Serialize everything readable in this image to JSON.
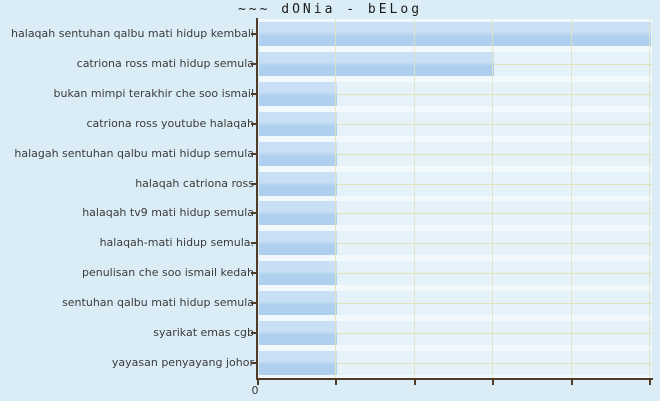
{
  "title": "~~~ dONia - bELog",
  "chart_data": {
    "type": "bar",
    "orientation": "horizontal",
    "title": "~~~ dONia - bELog",
    "xlabel": "",
    "ylabel": "",
    "categories": [
      "halaqah sentuhan qalbu mati hidup kembali",
      "catriona ross mati hidup semula",
      "bukan mimpi terakhir che soo ismail",
      "catriona ross youtube halaqah",
      "halagah sentuhan qalbu mati hidup semula",
      "halaqah catriona ross",
      "halaqah tv9 mati hidup semula",
      "halaqah-mati hidup semula.",
      "penulisan che soo ismail kedah",
      "sentuhan qalbu mati hidup semula",
      "syarikat emas cgb",
      "yayasan penyayang johor"
    ],
    "values": [
      5,
      3,
      1,
      1,
      1,
      1,
      1,
      1,
      1,
      1,
      1,
      1
    ],
    "xlim": [
      0,
      5
    ],
    "x_tick_count": 6,
    "tick_labels": [
      "0"
    ],
    "grid": true,
    "legend": false
  },
  "colors": {
    "page_bg": "#daedf6",
    "plot_bg": "#f1f9fd",
    "row_band_bg": "#e6f2f9",
    "bar_top": "#c8dff5",
    "bar_bottom": "#aecfee",
    "axis": "#503c26",
    "gridline": "#e0e4bb",
    "label_text": "#3b3b3b",
    "title_text": "#1b1b1b"
  }
}
